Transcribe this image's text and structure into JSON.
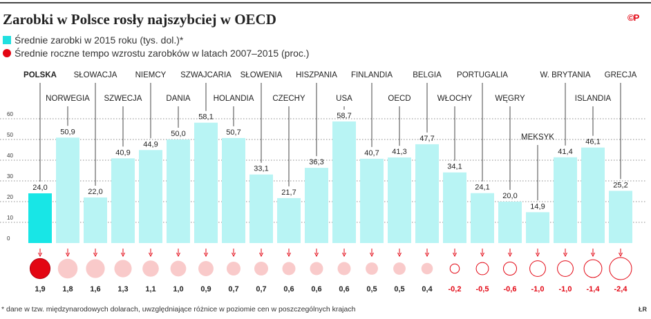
{
  "title": "Zarobki w Polsce rosły najszybciej w OECD",
  "logo": "©P",
  "legend": [
    {
      "label": "Średnie zarobki w 2015 roku (tys. dol.)*",
      "color": "#b8f4f4",
      "marker": "square"
    },
    {
      "label": "Średnie roczne tempo wzrostu zarobków w latach 2007–2015 (proc.)",
      "color": "#e30613",
      "marker": "circle"
    }
  ],
  "footnote": "* dane w tzw. międzynarodowych dolarach, uwzględniające różnice w poziomie cen w poszczególnych krajach",
  "credit": "ŁR",
  "colors": {
    "bar": "#b8f4f4",
    "bar_highlight": "#18e6e6",
    "circle_positive_fill": "#f9caca",
    "circle_highlight_fill": "#e30613",
    "negative": "#e30613",
    "grid": "#8a8a8a",
    "leader": "#444444"
  },
  "chart_data": {
    "type": "bar",
    "ylim": [
      0,
      60
    ],
    "yticks": [
      "0",
      "10",
      "20",
      "30",
      "40",
      "50",
      "60"
    ],
    "grid": true,
    "categories": [
      "POLSKA",
      "NORWEGIA",
      "SŁOWACJA",
      "SZWECJA",
      "NIEMCY",
      "DANIA",
      "SZWAJCARIA",
      "HOLANDIA",
      "SŁOWENIA",
      "CZECHY",
      "HISZPANIA",
      "USA",
      "FINLANDIA",
      "OECD",
      "BELGIA",
      "WŁOCHY",
      "PORTUGALIA",
      "WĘGRY",
      "MEKSYK",
      "W. BRYTANIA",
      "ISLANDIA",
      "GRECJA"
    ],
    "label_row": [
      1,
      2,
      1,
      2,
      1,
      2,
      1,
      2,
      1,
      2,
      1,
      2,
      1,
      2,
      1,
      2,
      1,
      2,
      3,
      1,
      2,
      1
    ],
    "series": [
      {
        "name": "Średnie zarobki w 2015 roku (tys. dol.)*",
        "values": [
          24.0,
          50.9,
          22.0,
          40.9,
          44.9,
          50.0,
          58.1,
          50.7,
          33.1,
          21.7,
          36.3,
          58.7,
          40.7,
          41.3,
          47.7,
          34.1,
          24.1,
          20.0,
          14.9,
          41.4,
          46.1,
          25.2
        ],
        "value_labels": [
          "24,0",
          "50,9",
          "22,0",
          "40,9",
          "44,9",
          "50,0",
          "58,1",
          "50,7",
          "33,1",
          "21,7",
          "36,3",
          "58,7",
          "40,7",
          "41,3",
          "47,7",
          "34,1",
          "24,1",
          "20,0",
          "14,9",
          "41,4",
          "46,1",
          "25,2"
        ]
      },
      {
        "name": "Średnie roczne tempo wzrostu zarobków w latach 2007–2015 (proc.)",
        "values": [
          1.9,
          1.8,
          1.6,
          1.3,
          1.1,
          1.0,
          0.9,
          0.7,
          0.7,
          0.6,
          0.6,
          0.6,
          0.5,
          0.5,
          0.4,
          -0.2,
          -0.5,
          -0.6,
          -1.0,
          -1.0,
          -1.4,
          -2.4
        ],
        "value_labels": [
          "1,9",
          "1,8",
          "1,6",
          "1,3",
          "1,1",
          "1,0",
          "0,9",
          "0,7",
          "0,7",
          "0,6",
          "0,6",
          "0,6",
          "0,5",
          "0,5",
          "0,4",
          "-0,2",
          "-0,5",
          "-0,6",
          "-1,0",
          "-1,0",
          "-1,4",
          "-2,4"
        ]
      }
    ],
    "highlight": "POLSKA"
  }
}
